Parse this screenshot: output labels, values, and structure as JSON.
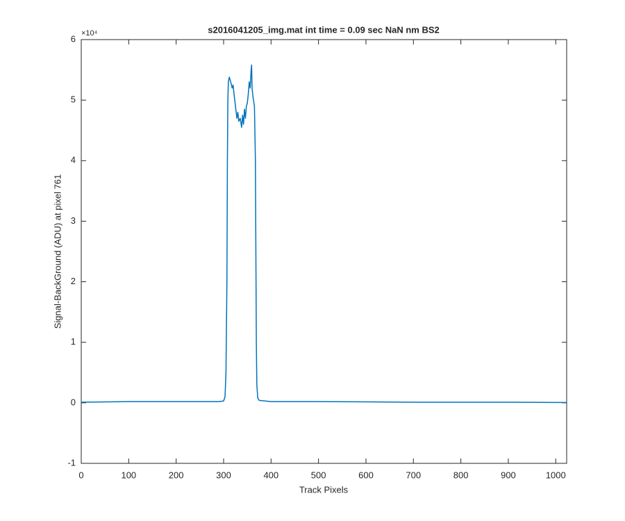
{
  "chart_data": {
    "type": "line",
    "title": "s2016041205_img.mat int time = 0.09 sec  NaN nm BS2",
    "x_label": "Track Pixels",
    "y_label": "Signal-BackGround (ADU) at pixel 761",
    "y_exponent_label": "×10⁴",
    "xlim": [
      0,
      1023
    ],
    "xticks": [
      0,
      100,
      200,
      300,
      400,
      500,
      600,
      700,
      800,
      900,
      1000
    ],
    "ylim": [
      -1,
      6
    ],
    "yticks": [
      -1,
      0,
      1,
      2,
      3,
      4,
      5,
      6
    ],
    "grid": false,
    "series": [
      {
        "color": "#0072bd",
        "x": [
          0,
          100,
          200,
          290,
          300,
          303,
          305,
          307,
          308,
          309,
          310,
          312,
          315,
          318,
          320,
          322,
          325,
          328,
          330,
          332,
          335,
          338,
          340,
          342,
          344,
          346,
          348,
          350,
          352,
          354,
          356,
          358,
          359,
          360,
          362,
          365,
          367,
          368,
          369,
          370,
          372,
          375,
          400,
          500,
          600,
          700,
          800,
          900,
          1000,
          1023
        ],
        "values": [
          0.01,
          0.02,
          0.02,
          0.02,
          0.03,
          0.1,
          0.5,
          2,
          4,
          5,
          5.3,
          5.38,
          5.3,
          5.2,
          5.25,
          5.1,
          4.9,
          4.7,
          4.8,
          4.65,
          4.7,
          4.55,
          4.75,
          4.6,
          4.85,
          4.7,
          4.9,
          4.95,
          5.1,
          5.3,
          5.2,
          5.5,
          5.58,
          5.2,
          5.05,
          4.9,
          4,
          2.5,
          1,
          0.3,
          0.08,
          0.04,
          0.02,
          0.02,
          0.015,
          0.01,
          0.01,
          0.01,
          0.005,
          0.005
        ]
      }
    ]
  }
}
